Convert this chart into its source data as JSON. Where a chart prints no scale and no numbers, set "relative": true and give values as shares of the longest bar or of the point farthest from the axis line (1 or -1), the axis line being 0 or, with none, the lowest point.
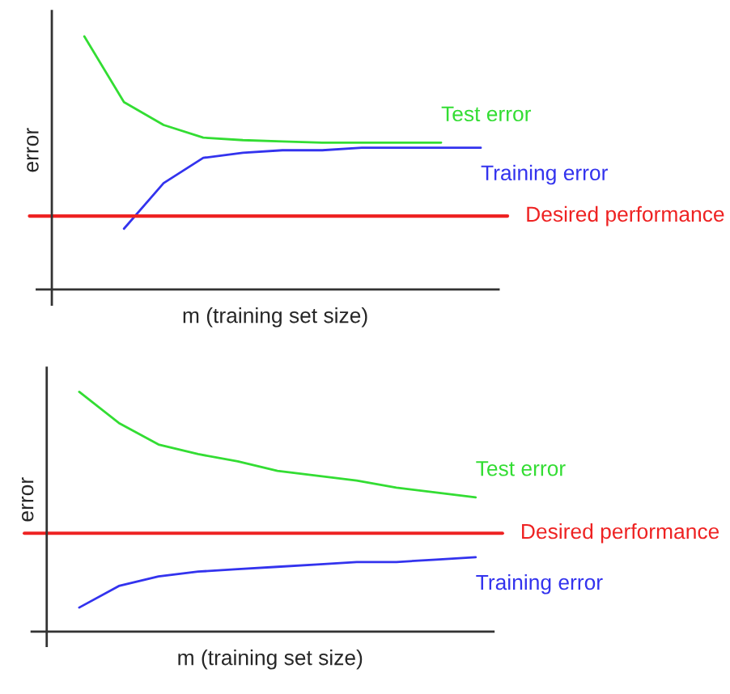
{
  "chart_data": [
    {
      "type": "line",
      "relative": true,
      "xlabel": "m (training set size)",
      "ylabel": "error",
      "categories": [
        null,
        null,
        null,
        null,
        null,
        null,
        null,
        null,
        null,
        null,
        null
      ],
      "series": [
        {
          "name": "Test error",
          "color": "#33dd33",
          "values": [
            1,
            0.74,
            0.65,
            0.6,
            0.59,
            0.585,
            0.58,
            0.58,
            0.58,
            0.58,
            null
          ]
        },
        {
          "name": "Training error",
          "color": "#3333ee",
          "values": [
            null,
            0.24,
            0.42,
            0.52,
            0.54,
            0.55,
            0.55,
            0.56,
            0.56,
            0.56,
            0.56
          ]
        }
      ],
      "ref_lines": [
        {
          "axis": "y",
          "value": 0.29,
          "label": "Desired performance",
          "color": "#ee2222"
        }
      ]
    },
    {
      "type": "line",
      "relative": true,
      "xlabel": "m (training set size)",
      "ylabel": "error",
      "categories": [
        null,
        null,
        null,
        null,
        null,
        null,
        null,
        null,
        null,
        null,
        null
      ],
      "series": [
        {
          "name": "Test error",
          "color": "#33dd33",
          "values": [
            1,
            0.87,
            0.78,
            0.74,
            0.71,
            0.67,
            0.65,
            0.63,
            0.6,
            0.58,
            0.56
          ]
        },
        {
          "name": "Training error",
          "color": "#3333ee",
          "values": [
            0.1,
            0.19,
            0.23,
            0.25,
            0.26,
            0.27,
            0.28,
            0.29,
            0.29,
            0.3,
            0.31
          ]
        }
      ],
      "ref_lines": [
        {
          "axis": "y",
          "value": 0.41,
          "label": "Desired performance",
          "color": "#ee2222"
        }
      ]
    }
  ]
}
